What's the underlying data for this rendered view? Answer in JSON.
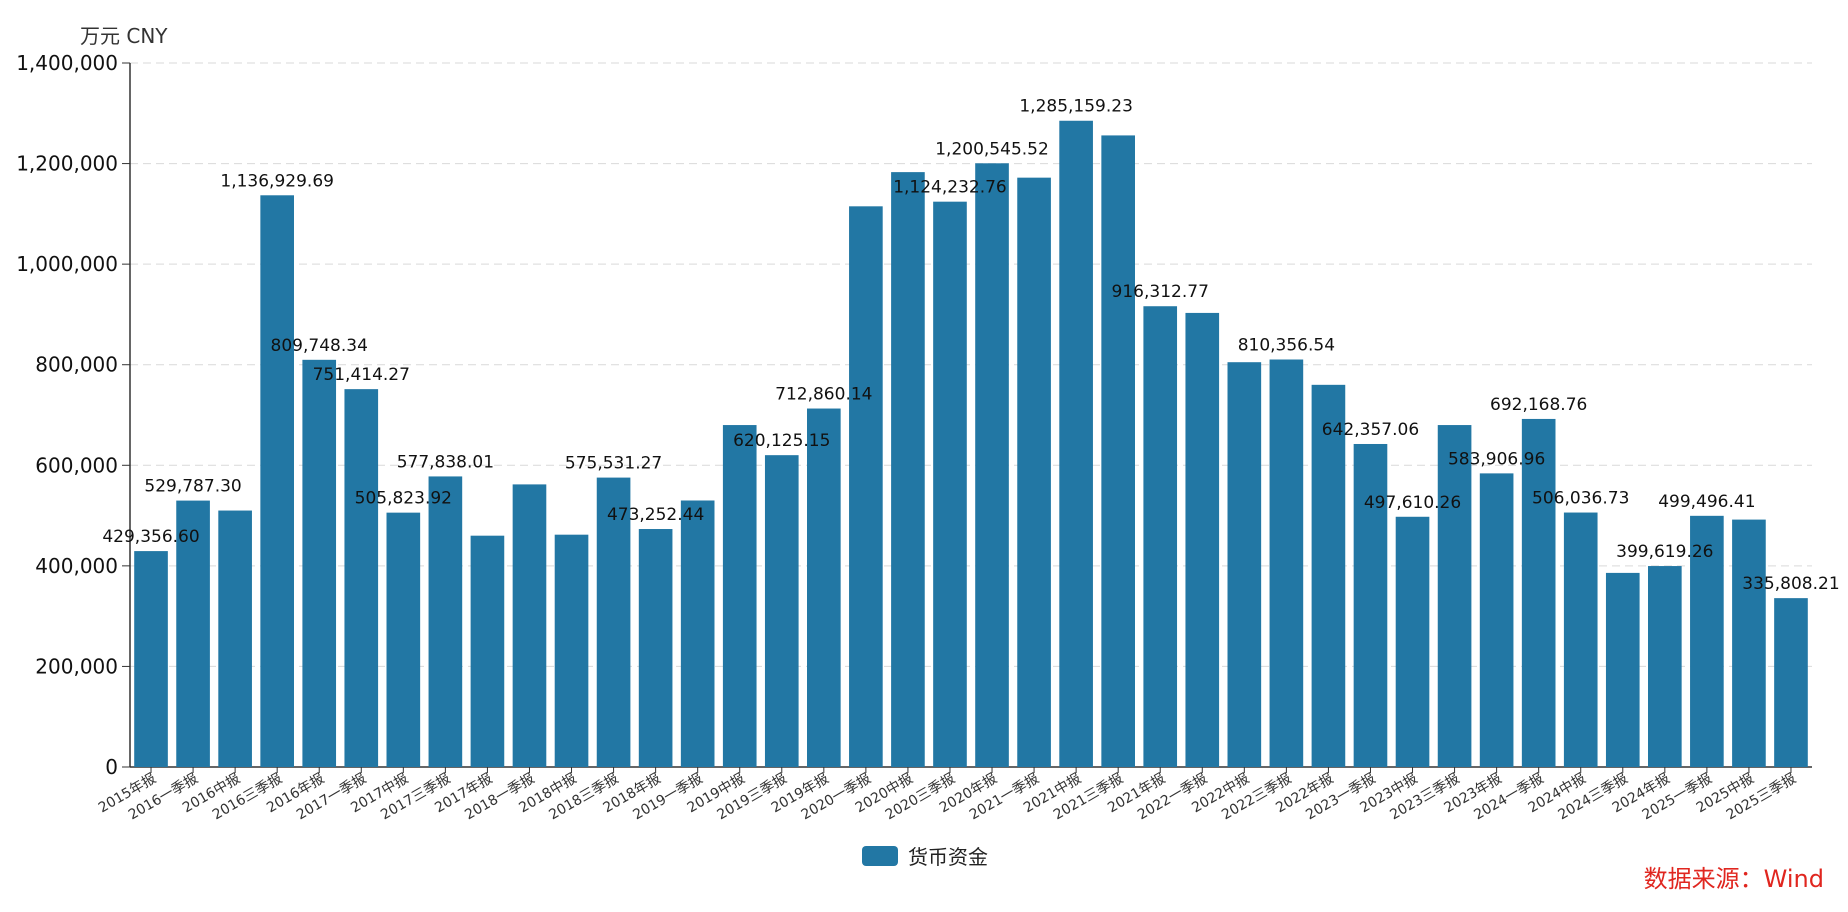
{
  "unit_label": "万元  CNY",
  "source_label": "数据来源：Wind",
  "colors": {
    "bar": "#2277a4",
    "grid": "#d9d9d9",
    "axis": "#333333",
    "source": "#e0261f"
  },
  "chart_data": {
    "type": "bar",
    "title": "",
    "xlabel": "",
    "ylabel": "",
    "ylim": [
      0,
      1400000
    ],
    "yticks": [
      0,
      200000,
      400000,
      600000,
      800000,
      1000000,
      1200000,
      1400000
    ],
    "ytick_labels": [
      "0",
      "200,000",
      "400,000",
      "600,000",
      "800,000",
      "1,000,000",
      "1,200,000",
      "1,400,000"
    ],
    "grid": true,
    "legend_position": "bottom-center",
    "categories": [
      "2015年报",
      "2016一季报",
      "2016中报",
      "2016三季报",
      "2016年报",
      "2017一季报",
      "2017中报",
      "2017三季报",
      "2017年报",
      "2018一季报",
      "2018中报",
      "2018三季报",
      "2018年报",
      "2019一季报",
      "2019中报",
      "2019三季报",
      "2019年报",
      "2020一季报",
      "2020中报",
      "2020三季报",
      "2020年报",
      "2021一季报",
      "2021中报",
      "2021三季报",
      "2021年报",
      "2022一季报",
      "2022中报",
      "2022三季报",
      "2022年报",
      "2023一季报",
      "2023中报",
      "2023三季报",
      "2023年报",
      "2024一季报",
      "2024中报",
      "2024三季报",
      "2024年报",
      "2025一季报",
      "2025中报",
      "2025三季报"
    ],
    "series": [
      {
        "name": "货币资金",
        "values": [
          429356.6,
          529787.3,
          510000,
          1136929.69,
          809748.34,
          751414.27,
          505823.92,
          577838.01,
          460000,
          562000,
          462000,
          575531.27,
          473252.44,
          530000,
          680000,
          620125.15,
          712860.14,
          1115000,
          1183000,
          1124232.76,
          1200545.52,
          1172000,
          1285159.23,
          1256000,
          916312.77,
          903000,
          805000,
          810356.54,
          760000,
          642357.06,
          497610.26,
          680000,
          583906.96,
          692168.76,
          506036.73,
          386000,
          399619.26,
          499496.41,
          492000,
          335808.21
        ]
      }
    ],
    "data_labels": [
      {
        "index": 0,
        "text": "429,356.60"
      },
      {
        "index": 1,
        "text": "529,787.30"
      },
      {
        "index": 3,
        "text": "1,136,929.69"
      },
      {
        "index": 4,
        "text": "809,748.34"
      },
      {
        "index": 5,
        "text": "751,414.27"
      },
      {
        "index": 6,
        "text": "505,823.92"
      },
      {
        "index": 7,
        "text": "577,838.01"
      },
      {
        "index": 11,
        "text": "575,531.27"
      },
      {
        "index": 12,
        "text": "473,252.44"
      },
      {
        "index": 15,
        "text": "620,125.15"
      },
      {
        "index": 16,
        "text": "712,860.14"
      },
      {
        "index": 19,
        "text": "1,124,232.76"
      },
      {
        "index": 20,
        "text": "1,200,545.52"
      },
      {
        "index": 22,
        "text": "1,285,159.23"
      },
      {
        "index": 24,
        "text": "916,312.77"
      },
      {
        "index": 27,
        "text": "810,356.54"
      },
      {
        "index": 29,
        "text": "642,357.06"
      },
      {
        "index": 30,
        "text": "497,610.26"
      },
      {
        "index": 32,
        "text": "583,906.96"
      },
      {
        "index": 33,
        "text": "692,168.76"
      },
      {
        "index": 34,
        "text": "506,036.73"
      },
      {
        "index": 36,
        "text": "399,619.26"
      },
      {
        "index": 37,
        "text": "499,496.41"
      },
      {
        "index": 39,
        "text": "335,808.21"
      }
    ]
  }
}
